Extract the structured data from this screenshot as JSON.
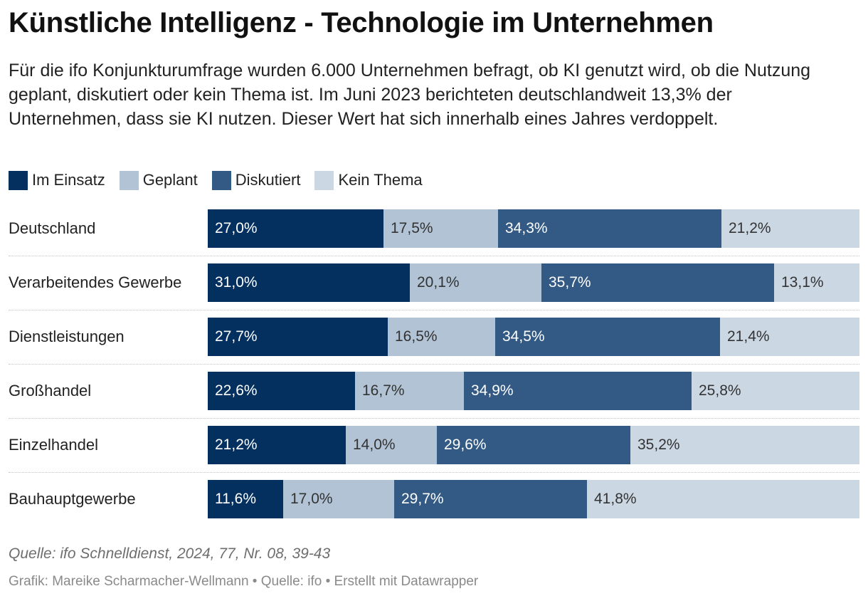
{
  "title": "Künstliche Intelligenz - Technologie im Unternehmen",
  "description": "Für die ifo Konjunkturumfrage wurden 6.000 Unternehmen befragt, ob KI genutzt wird, ob die Nutzung geplant, diskutiert oder kein Thema ist. Im Juni 2023 berichteten deutschlandweit 13,3% der Unternehmen, dass sie KI nutzen. Dieser Wert hat sich innerhalb eines Jahres verdoppelt.",
  "source_note": "Quelle: ifo Schnelldienst, 2024, 77, Nr. 08, 39-43",
  "credit": "Grafik: Mareike Scharmacher-Wellmann • Quelle: ifo • Erstellt mit Datawrapper",
  "chart_data": {
    "type": "bar",
    "orientation": "horizontal",
    "stacked": true,
    "normalized_percent": true,
    "legend_position": "top-left",
    "grid": false,
    "categories": [
      "Deutschland",
      "Verarbeitendes Gewerbe",
      "Dienstleistungen",
      "Großhandel",
      "Einzelhandel",
      "Bauhauptgewerbe"
    ],
    "series": [
      {
        "name": "Im Einsatz",
        "color": "#04305f",
        "label_color": "#ffffff",
        "values": [
          27.0,
          31.0,
          27.7,
          22.6,
          21.2,
          11.6
        ],
        "labels": [
          "27,0%",
          "31,0%",
          "27,7%",
          "22,6%",
          "21,2%",
          "11,6%"
        ]
      },
      {
        "name": "Geplant",
        "color": "#b1c3d5",
        "label_color": "#333333",
        "values": [
          17.5,
          20.1,
          16.5,
          16.7,
          14.0,
          17.0
        ],
        "labels": [
          "17,5%",
          "20,1%",
          "16,5%",
          "16,7%",
          "14,0%",
          "17,0%"
        ]
      },
      {
        "name": "Diskutiert",
        "color": "#335a84",
        "label_color": "#ffffff",
        "values": [
          34.3,
          35.7,
          34.5,
          34.9,
          29.6,
          29.7
        ],
        "labels": [
          "34,3%",
          "35,7%",
          "34,5%",
          "34,9%",
          "29,6%",
          "29,7%"
        ]
      },
      {
        "name": "Kein Thema",
        "color": "#ccd7e4",
        "label_color": "#333333",
        "values": [
          21.2,
          13.1,
          21.4,
          25.8,
          35.2,
          41.8
        ],
        "labels": [
          "21,2%",
          "13,1%",
          "21,4%",
          "25,8%",
          "35,2%",
          "41,8%"
        ]
      }
    ]
  }
}
